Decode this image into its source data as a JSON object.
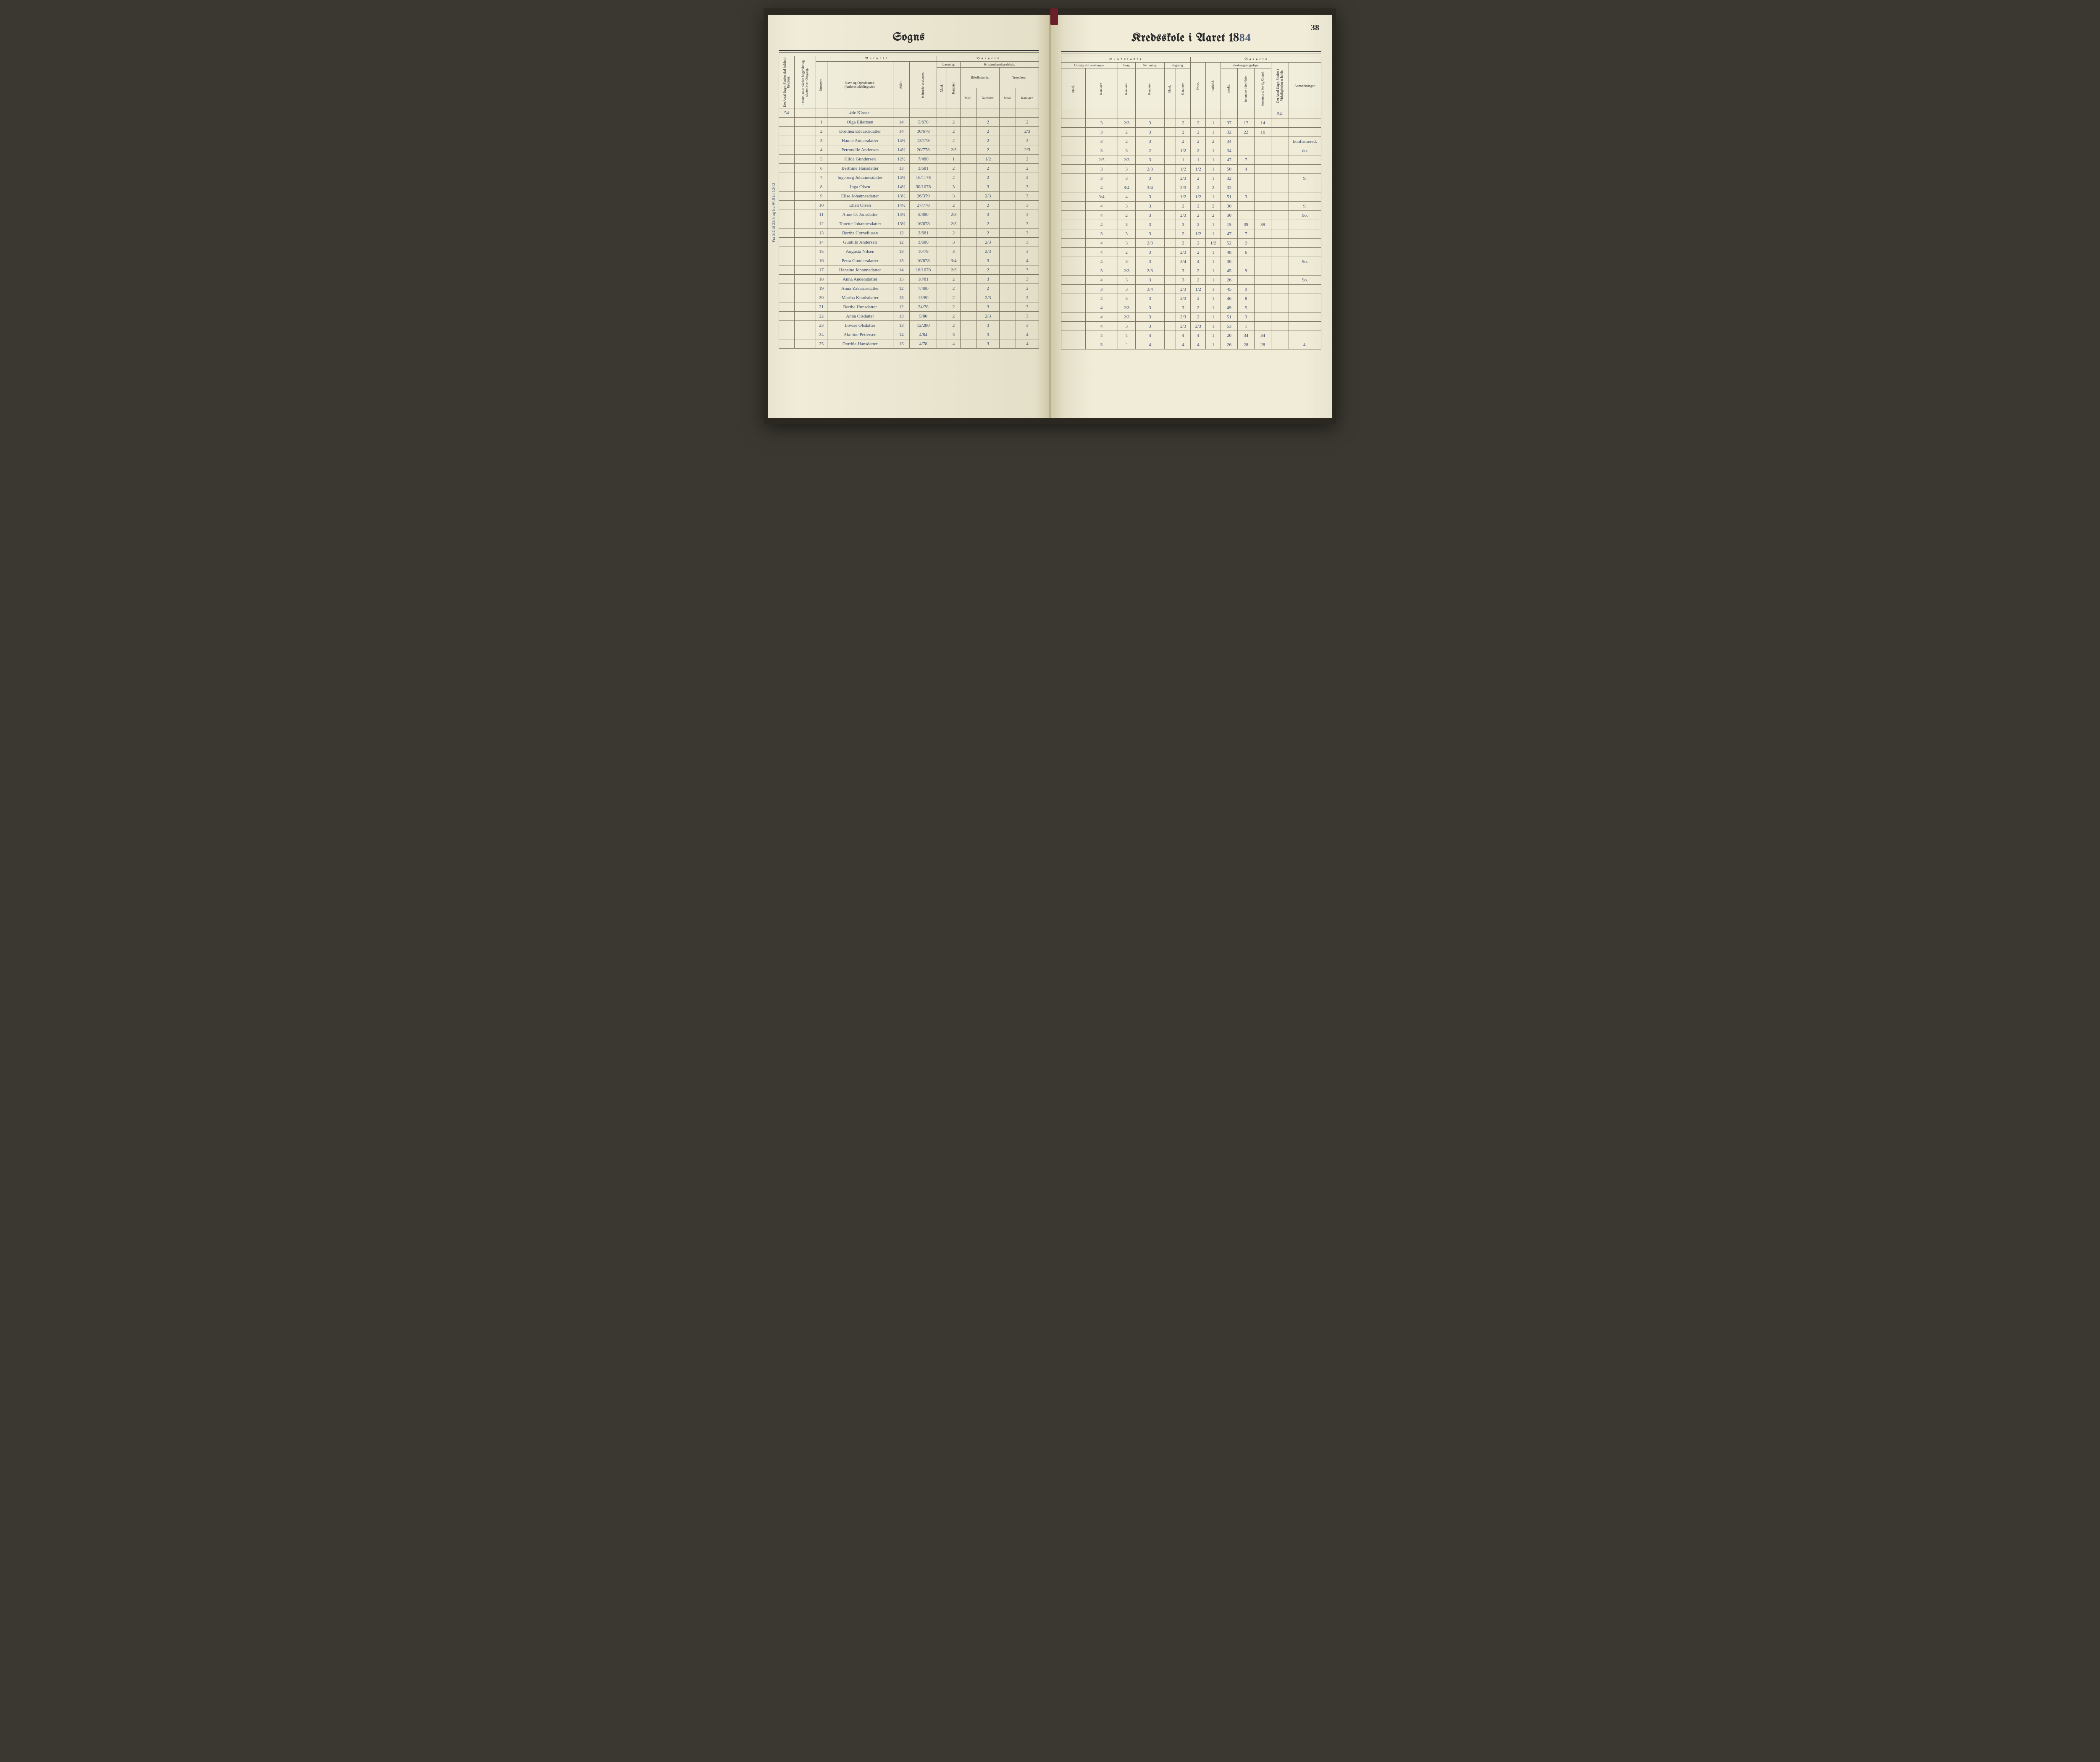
{
  "pageNumber": "38",
  "leftTitle": "Sogns",
  "rightTitlePrefix": "Kredsskole i Aaret 18",
  "yearSuffix": "84",
  "marginNote": "Fra 3/4 til 23/5 og fra 9/10 til 12/12",
  "headers": {
    "barnets": "B a r n e t s",
    "kundskaber": "K u n d s k a b e r.",
    "antalDage": "Det Antal Dage, Skolen skal holdes i Kredsen.",
    "datum": "Datum, naar Skolen begynder og slutter hver Omgang.",
    "nummer": "Nummer.",
    "navn": "Navn og Opholdssted.",
    "navnSub": "(Anføres afdelingsvis).",
    "alder": "Alder.",
    "indtraed": "Indtrædelsesdatum.",
    "laesning": "Læsning.",
    "kristendom": "Kristendomskundskab.",
    "bibel": "Bibelhistorie.",
    "troes": "Troeslære.",
    "maal": "Maal.",
    "karakter": "Karakter.",
    "udvalg": "Udvalg af Læsebogen.",
    "sang": "Sang.",
    "skrivning": "Skrivning.",
    "regning": "Regning.",
    "evne": "Evne.",
    "forhold": "Forhold.",
    "skolesog": "Skolesøgningsdage.",
    "modte": "mødte.",
    "forsomteHele": "forsømte i det Hele.",
    "forsomteGrund": "forsømte af lovlig Grund.",
    "virkDage": "Det Antal Dage, Skolen i Virkeligheden er holdt.",
    "anmaerk": "Anmærkninger."
  },
  "topDays": "54",
  "topDaysRight": "54.",
  "classLabel": "4de Klasse.",
  "rows": [
    {
      "n": "1",
      "name": "Olga Eilertsen",
      "age": "14",
      "dob": "5/678",
      "l1": "",
      "l2": "2",
      "b1": "",
      "b2": "2",
      "t1": "",
      "t2": "2",
      "u1": "",
      "u2": "3",
      "sa": "2/3",
      "sk": "3",
      "rm": "",
      "rk": "2",
      "ev": "2",
      "fo": "1",
      "mo": "37",
      "fh": "17",
      "fg": "14",
      "an": ""
    },
    {
      "n": "2",
      "name": "Dorthea Edvardsdatter",
      "age": "14",
      "dob": "30/678",
      "l1": "",
      "l2": "2",
      "b1": "",
      "b2": "2",
      "t1": "",
      "t2": "2/3",
      "u1": "",
      "u2": "3",
      "sa": "2",
      "sk": "3",
      "rm": "",
      "rk": "2",
      "ev": "2",
      "fo": "1",
      "mo": "32",
      "fh": "22",
      "fg": "16",
      "an": ""
    },
    {
      "n": "3",
      "name": "Hanne Andersdatter",
      "age": "14½",
      "dob": "13/178",
      "l1": "",
      "l2": "2",
      "b1": "",
      "b2": "2",
      "t1": "",
      "t2": "3",
      "u1": "",
      "u2": "3",
      "sa": "2",
      "sk": "3",
      "rm": "",
      "rk": "2",
      "ev": "2",
      "fo": "2",
      "mo": "34",
      "fh": "",
      "fg": "",
      "an": "konfirmered."
    },
    {
      "n": "4",
      "name": "Petronelle Andersen",
      "age": "14½",
      "dob": "20/778",
      "l1": "",
      "l2": "2/3",
      "b1": "",
      "b2": "2",
      "t1": "",
      "t2": "2/3",
      "u1": "",
      "u2": "3",
      "sa": "3",
      "sk": "2",
      "rm": "",
      "rk": "1/2",
      "ev": "2",
      "fo": "1",
      "mo": "34",
      "fh": "",
      "fg": "",
      "an": "do."
    },
    {
      "n": "5",
      "name": "Hilda Gundersen",
      "age": "12½",
      "dob": "7/480",
      "l1": "",
      "l2": "1",
      "b1": "",
      "b2": "1/2",
      "t1": "",
      "t2": "2",
      "u1": "",
      "u2": "2/3",
      "sa": "2/3",
      "sk": "3",
      "rm": "",
      "rk": "1",
      "ev": "1",
      "fo": "1",
      "mo": "47",
      "fh": "7",
      "fg": "",
      "an": ""
    },
    {
      "n": "6",
      "name": "Berthine Hansdatter",
      "age": "13",
      "dob": "3/681",
      "l1": "",
      "l2": "2",
      "b1": "",
      "b2": "2",
      "t1": "",
      "t2": "2",
      "u1": "",
      "u2": "3",
      "sa": "3",
      "sk": "2/3",
      "rm": "",
      "rk": "1/2",
      "ev": "1/2",
      "fo": "1",
      "mo": "50",
      "fh": "4",
      "fg": "",
      "an": ""
    },
    {
      "n": "7",
      "name": "Ingeborg Johannesdatter",
      "age": "14½",
      "dob": "16/1178",
      "l1": "",
      "l2": "2",
      "b1": "",
      "b2": "2",
      "t1": "",
      "t2": "2",
      "u1": "",
      "u2": "3",
      "sa": "3",
      "sk": "3",
      "rm": "",
      "rk": "2/3",
      "ev": "2",
      "fo": "1",
      "mo": "32",
      "fh": "",
      "fg": "",
      "an": "9."
    },
    {
      "n": "8",
      "name": "Inga Olsen",
      "age": "14½",
      "dob": "30/1078",
      "l1": "",
      "l2": "3",
      "b1": "",
      "b2": "3",
      "t1": "",
      "t2": "3",
      "u1": "",
      "u2": "4",
      "sa": "3/4",
      "sk": "3/4",
      "rm": "",
      "rk": "2/3",
      "ev": "2",
      "fo": "2",
      "mo": "32",
      "fh": "",
      "fg": "",
      "an": ""
    },
    {
      "n": "9",
      "name": "Elise Johannesdatter",
      "age": "13½",
      "dob": "26/379",
      "l1": "",
      "l2": "3",
      "b1": "",
      "b2": "2/3",
      "t1": "",
      "t2": "3",
      "u1": "",
      "u2": "3/4",
      "sa": "4",
      "sk": "3",
      "rm": "",
      "rk": "1/2",
      "ev": "1/2",
      "fo": "1",
      "mo": "51",
      "fh": "3",
      "fg": "",
      "an": ""
    },
    {
      "n": "10",
      "name": "Ellen Olsen",
      "age": "14½",
      "dob": "27/778",
      "l1": "",
      "l2": "2",
      "b1": "",
      "b2": "2",
      "t1": "",
      "t2": "3",
      "u1": "",
      "u2": "4",
      "sa": "3",
      "sk": "3",
      "rm": "",
      "rk": "2",
      "ev": "2",
      "fo": "2",
      "mo": "30",
      "fh": "",
      "fg": "",
      "an": "9."
    },
    {
      "n": "11",
      "name": "Anne O. Jonsdatter",
      "age": "14½",
      "dob": "5/380",
      "l1": "",
      "l2": "2/3",
      "b1": "",
      "b2": "3",
      "t1": "",
      "t2": "3",
      "u1": "",
      "u2": "4",
      "sa": "2",
      "sk": "3",
      "rm": "",
      "rk": "2/3",
      "ev": "2",
      "fo": "2",
      "mo": "30",
      "fh": "",
      "fg": "",
      "an": "9o."
    },
    {
      "n": "12",
      "name": "Tonette Johannesdatter",
      "age": "13½",
      "dob": "16/678",
      "l1": "",
      "l2": "2/3",
      "b1": "",
      "b2": "2",
      "t1": "",
      "t2": "3",
      "u1": "",
      "u2": "4",
      "sa": "3",
      "sk": "3",
      "rm": "",
      "rk": "3",
      "ev": "2",
      "fo": "1",
      "mo": "15",
      "fh": "39",
      "fg": "39",
      "an": ""
    },
    {
      "n": "13",
      "name": "Bertha Corneliusen",
      "age": "12",
      "dob": "2/681",
      "l1": "",
      "l2": "2",
      "b1": "",
      "b2": "2",
      "t1": "",
      "t2": "3",
      "u1": "",
      "u2": "3",
      "sa": "3",
      "sk": "3",
      "rm": "",
      "rk": "2",
      "ev": "1/2",
      "fo": "1",
      "mo": "47",
      "fh": "7",
      "fg": "",
      "an": ""
    },
    {
      "n": "14",
      "name": "Gunhild Andersen",
      "age": "12",
      "dob": "3/680",
      "l1": "",
      "l2": "3",
      "b1": "",
      "b2": "2/3",
      "t1": "",
      "t2": "3",
      "u1": "",
      "u2": "4",
      "sa": "3",
      "sk": "2/3",
      "rm": "",
      "rk": "2",
      "ev": "2",
      "fo": "1/2",
      "mo": "52",
      "fh": "2",
      "fg": "",
      "an": ""
    },
    {
      "n": "15",
      "name": "Augusta Nilsen",
      "age": "13",
      "dob": "10/79",
      "l1": "",
      "l2": "3",
      "b1": "",
      "b2": "2/3",
      "t1": "",
      "t2": "3",
      "u1": "",
      "u2": "4",
      "sa": "2",
      "sk": "3",
      "rm": "",
      "rk": "2/3",
      "ev": "2",
      "fo": "1",
      "mo": "48",
      "fh": "6",
      "fg": "",
      "an": ""
    },
    {
      "n": "16",
      "name": "Petra Gundersdatter",
      "age": "15",
      "dob": "16/678",
      "l1": "",
      "l2": "3/4",
      "b1": "",
      "b2": "3",
      "t1": "",
      "t2": "4",
      "u1": "",
      "u2": "4",
      "sa": "3",
      "sk": "3",
      "rm": "",
      "rk": "3/4",
      "ev": "4",
      "fo": "1",
      "mo": "30",
      "fh": "",
      "fg": "",
      "an": "9o."
    },
    {
      "n": "17",
      "name": "Hansine Johannedatter",
      "age": "14",
      "dob": "16/1078",
      "l1": "",
      "l2": "2/3",
      "b1": "",
      "b2": "2",
      "t1": "",
      "t2": "3",
      "u1": "",
      "u2": "3",
      "sa": "2/3",
      "sk": "2/3",
      "rm": "",
      "rk": "3",
      "ev": "2",
      "fo": "1",
      "mo": "45",
      "fh": "9",
      "fg": "",
      "an": ""
    },
    {
      "n": "18",
      "name": "Anna Andersdatter",
      "age": "15",
      "dob": "10/81",
      "l1": "",
      "l2": "2",
      "b1": "",
      "b2": "3",
      "t1": "",
      "t2": "3",
      "u1": "",
      "u2": "4",
      "sa": "3",
      "sk": "3",
      "rm": "",
      "rk": "3",
      "ev": "2",
      "fo": "1",
      "mo": "26",
      "fh": "",
      "fg": "",
      "an": "9o."
    },
    {
      "n": "19",
      "name": "Anna Zakariasdatter",
      "age": "12",
      "dob": "7/480",
      "l1": "",
      "l2": "2",
      "b1": "",
      "b2": "2",
      "t1": "",
      "t2": "2",
      "u1": "",
      "u2": "3",
      "sa": "3",
      "sk": "3/4",
      "rm": "",
      "rk": "2/3",
      "ev": "1/2",
      "fo": "1",
      "mo": "45",
      "fh": "9",
      "fg": "",
      "an": ""
    },
    {
      "n": "20",
      "name": "Martha Knudsdatter",
      "age": "13",
      "dob": "13/80",
      "l1": "",
      "l2": "2",
      "b1": "",
      "b2": "2/3",
      "t1": "",
      "t2": "3",
      "u1": "",
      "u2": "4",
      "sa": "3",
      "sk": "3",
      "rm": "",
      "rk": "2/3",
      "ev": "2",
      "fo": "1",
      "mo": "46",
      "fh": "8",
      "fg": "",
      "an": ""
    },
    {
      "n": "21",
      "name": "Bertha Hunsdatter",
      "age": "12",
      "dob": "24/78",
      "l1": "",
      "l2": "2",
      "b1": "",
      "b2": "3",
      "t1": "",
      "t2": "3",
      "u1": "",
      "u2": "4",
      "sa": "2/3",
      "sk": "3",
      "rm": "",
      "rk": "3",
      "ev": "2",
      "fo": "1",
      "mo": "49",
      "fh": "5",
      "fg": "",
      "an": ""
    },
    {
      "n": "22",
      "name": "Anna Olsdatter",
      "age": "13",
      "dob": "5/80",
      "l1": "",
      "l2": "2",
      "b1": "",
      "b2": "2/3",
      "t1": "",
      "t2": "3",
      "u1": "",
      "u2": "4",
      "sa": "2/3",
      "sk": "3",
      "rm": "",
      "rk": "2/3",
      "ev": "2",
      "fo": "1",
      "mo": "51",
      "fh": "3",
      "fg": "",
      "an": ""
    },
    {
      "n": "23",
      "name": "Lovise Olsdatter",
      "age": "13",
      "dob": "12/280",
      "l1": "",
      "l2": "2",
      "b1": "",
      "b2": "3",
      "t1": "",
      "t2": "3",
      "u1": "",
      "u2": "4",
      "sa": "3",
      "sk": "3",
      "rm": "",
      "rk": "2/3",
      "ev": "2/3",
      "fo": "1",
      "mo": "53",
      "fh": "1",
      "fg": "",
      "an": ""
    },
    {
      "n": "24",
      "name": "Akotine Pettersen",
      "age": "14",
      "dob": "4/84",
      "l1": "",
      "l2": "3",
      "b1": "",
      "b2": "3",
      "t1": "",
      "t2": "4",
      "u1": "",
      "u2": "4",
      "sa": "4",
      "sk": "4",
      "rm": "",
      "rk": "4",
      "ev": "4",
      "fo": "1",
      "mo": "20",
      "fh": "34",
      "fg": "34",
      "an": ""
    },
    {
      "n": "25",
      "name": "Dorthia Hansdatter",
      "age": "15",
      "dob": "4/78",
      "l1": "",
      "l2": "4",
      "b1": "",
      "b2": "3",
      "t1": "",
      "t2": "4",
      "u1": "",
      "u2": "5",
      "sa": "\"",
      "sk": "4",
      "rm": "",
      "rk": "4",
      "ev": "4",
      "fo": "1",
      "mo": "26",
      "fh": "28",
      "fg": "28",
      "an": "4."
    }
  ]
}
